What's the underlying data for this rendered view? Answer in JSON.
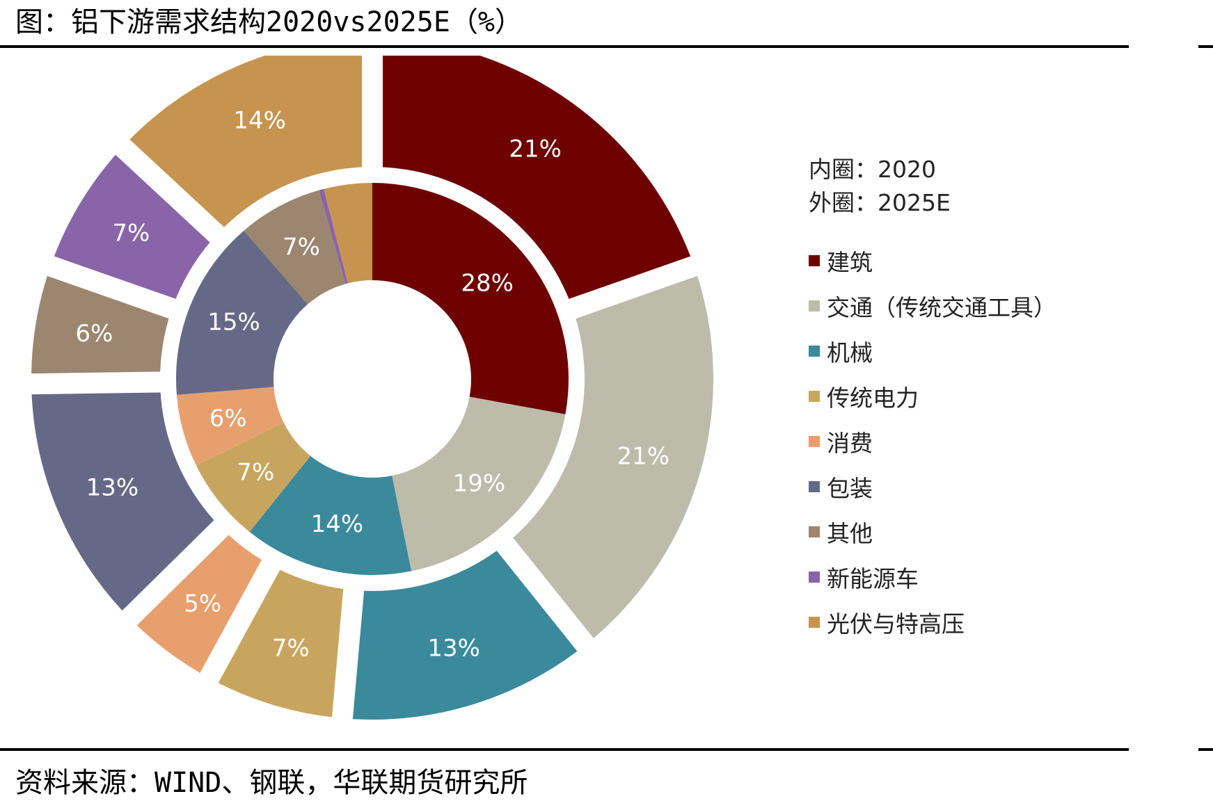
{
  "header": {
    "title": "图：铝下游需求结构2020vs2025E（%）"
  },
  "footer": {
    "source": "资料来源：WIND、钢联，华联期货研究所"
  },
  "legend": {
    "inner_note": "内圈：2020",
    "outer_note": "外圈：2025E",
    "items": [
      "建筑",
      "交通（传统交通工具）",
      "机械",
      "传统电力",
      "消费",
      "包装",
      "其他",
      "新能源车",
      "光伏与特高压"
    ]
  },
  "chart_data": {
    "type": "pie",
    "subtype": "double-donut",
    "title": "图：铝下游需求结构2020vs2025E（%）",
    "categories": [
      "建筑",
      "交通（传统交通工具）",
      "机械",
      "传统电力",
      "消费",
      "包装",
      "其他",
      "新能源车",
      "光伏与特高压"
    ],
    "colors": [
      "#6E0000",
      "#BDBBAA",
      "#3A8A9C",
      "#C8A55E",
      "#E89F6E",
      "#656987",
      "#9C8670",
      "#8A64A8",
      "#C6944F"
    ],
    "series": [
      {
        "name": "2020",
        "ring": "inner",
        "values": [
          28,
          19,
          14,
          7,
          6,
          15,
          7,
          0.4,
          4
        ],
        "labels": [
          "28%",
          "19%",
          "14%",
          "7%",
          "6%",
          "15%",
          "7%",
          "",
          ""
        ]
      },
      {
        "name": "2025E",
        "ring": "outer",
        "values": [
          21,
          21,
          13,
          7,
          5,
          13,
          6,
          7,
          14
        ],
        "labels": [
          "21%",
          "21%",
          "13%",
          "7%",
          "5%",
          "13%",
          "6%",
          "7%",
          "14%"
        ]
      }
    ],
    "legend_position": "right"
  }
}
